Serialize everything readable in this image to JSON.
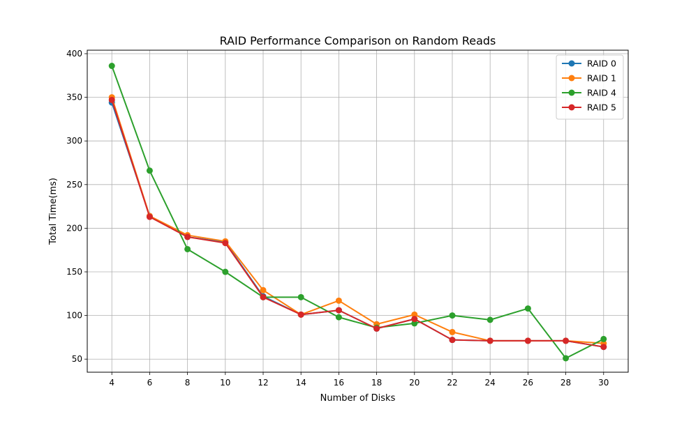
{
  "chart_data": {
    "type": "line",
    "title": "RAID Performance Comparison on Random Reads",
    "xlabel": "Number of Disks",
    "ylabel": "Total Time(ms)",
    "x": [
      4,
      6,
      8,
      10,
      12,
      14,
      16,
      18,
      20,
      22,
      24,
      26,
      28,
      30
    ],
    "xticks": [
      "4",
      "6",
      "8",
      "10",
      "12",
      "14",
      "16",
      "18",
      "20",
      "22",
      "24",
      "26",
      "28",
      "30"
    ],
    "yticks": [
      "50",
      "100",
      "150",
      "200",
      "250",
      "300",
      "350",
      "400"
    ],
    "ylim": [
      35,
      404
    ],
    "xlim": [
      2.7,
      31.3
    ],
    "grid": true,
    "legend_position": "top-right",
    "series": [
      {
        "name": "RAID 0",
        "color": "#1f77b4",
        "values": [
          344,
          214,
          190,
          184,
          122,
          101,
          106,
          85,
          96,
          72,
          71,
          71,
          71,
          64
        ]
      },
      {
        "name": "RAID 1",
        "color": "#ff7f0e",
        "values": [
          350,
          214,
          192,
          185,
          129,
          101,
          117,
          90,
          101,
          81,
          71,
          71,
          71,
          68
        ]
      },
      {
        "name": "RAID 4",
        "color": "#2ca02c",
        "values": [
          386,
          266,
          176,
          150,
          121,
          121,
          98,
          86,
          91,
          100,
          95,
          108,
          51,
          73
        ]
      },
      {
        "name": "RAID 5",
        "color": "#d62728",
        "values": [
          347,
          213,
          190,
          183,
          121,
          101,
          106,
          85,
          96,
          72,
          71,
          71,
          71,
          64
        ]
      }
    ]
  }
}
